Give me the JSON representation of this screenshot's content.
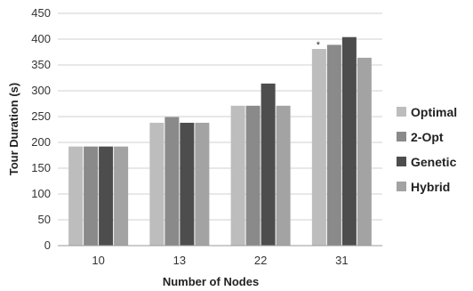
{
  "chart_data": {
    "type": "bar",
    "title": "",
    "xlabel": "Number of Nodes",
    "ylabel": "Tour Duration (s)",
    "categories": [
      "10",
      "13",
      "22",
      "31"
    ],
    "ylim": [
      0,
      450
    ],
    "yticks": [
      "0",
      "50",
      "100",
      "150",
      "200",
      "250",
      "300",
      "350",
      "400",
      "450"
    ],
    "grid": true,
    "legend_position": "right",
    "series": [
      {
        "name": "Optimal",
        "color": "#bdbdbd",
        "values": [
          192,
          238,
          271,
          381
        ]
      },
      {
        "name": "2-Opt",
        "color": "#8a8a8a",
        "values": [
          192,
          249,
          271,
          389
        ]
      },
      {
        "name": "Genetic",
        "color": "#4d4d4d",
        "values": [
          192,
          238,
          314,
          404
        ]
      },
      {
        "name": "Hybrid",
        "color": "#a3a3a3",
        "values": [
          192,
          238,
          271,
          364
        ]
      }
    ],
    "annotations": [
      {
        "text": "*",
        "category": "31",
        "series": "Optimal"
      }
    ]
  }
}
